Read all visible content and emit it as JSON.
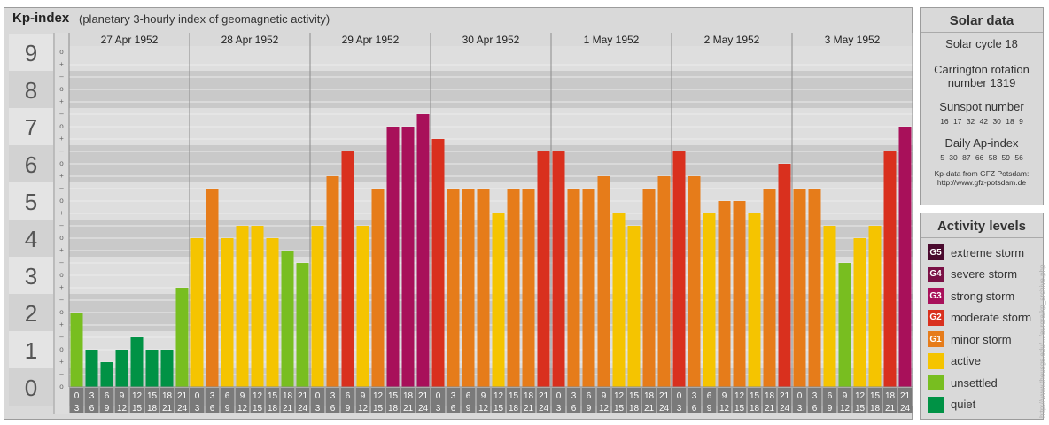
{
  "header": {
    "title": "Kp-index",
    "subtitle": "(planetary 3-hourly index of geomagnetic activity)"
  },
  "chart_data": {
    "type": "bar",
    "title": "Kp-index",
    "subtitle": "(planetary 3-hourly index of geomagnetic activity)",
    "ylim": [
      0,
      9
    ],
    "y_ticks": [
      "0",
      "1",
      "2",
      "3",
      "4",
      "5",
      "6",
      "7",
      "8",
      "9"
    ],
    "minor_marks": [
      "+",
      "–",
      "o"
    ],
    "days": [
      "27 Apr 1952",
      "28 Apr 1952",
      "29 Apr 1952",
      "30 Apr 1952",
      "1 May 1952",
      "2 May 1952",
      "3 May 1952"
    ],
    "interval_top": [
      "0",
      "3",
      "6",
      "9",
      "12",
      "15",
      "18",
      "21"
    ],
    "interval_bottom": [
      "3",
      "6",
      "9",
      "12",
      "15",
      "18",
      "21",
      "24"
    ],
    "values": [
      [
        2.0,
        1.0,
        0.667,
        1.0,
        1.333,
        1.0,
        1.0,
        2.667
      ],
      [
        4.0,
        5.333,
        4.0,
        4.333,
        4.333,
        4.0,
        3.667,
        3.333
      ],
      [
        4.333,
        5.667,
        6.333,
        4.333,
        5.333,
        7.0,
        7.0,
        7.333
      ],
      [
        6.667,
        5.333,
        5.333,
        5.333,
        4.667,
        5.333,
        5.333,
        6.333
      ],
      [
        6.333,
        5.333,
        5.333,
        5.667,
        4.667,
        4.333,
        5.333,
        5.667
      ],
      [
        6.333,
        5.667,
        4.667,
        5.0,
        5.0,
        4.667,
        5.333,
        6.0
      ],
      [
        5.333,
        5.333,
        4.333,
        3.333,
        4.0,
        4.333,
        6.333,
        7.0
      ]
    ],
    "legend_placement": "right",
    "grid": true
  },
  "solar": {
    "title": "Solar data",
    "cycle": "Solar cycle 18",
    "carrington_1": "Carrington rotation",
    "carrington_2": "number 1319",
    "sunspot_title": "Sunspot number",
    "sunspot_values": "16 17 32 42 30 18 9",
    "ap_title": "Daily Ap-index",
    "ap_values": "5 30 87 66 58 59 56",
    "credit_1": "Kp-data from GFZ Potsdam:",
    "credit_2": "http://www.gfz-potsdam.de"
  },
  "levels": {
    "title": "Activity levels",
    "items": [
      {
        "badge": "G5",
        "label": "extreme storm",
        "color": "#4a0a2e"
      },
      {
        "badge": "G4",
        "label": "severe storm",
        "color": "#7a1045"
      },
      {
        "badge": "G3",
        "label": "strong storm",
        "color": "#a8105a"
      },
      {
        "badge": "G2",
        "label": "moderate storm",
        "color": "#d9301e"
      },
      {
        "badge": "G1",
        "label": "minor storm",
        "color": "#e67c1a"
      },
      {
        "badge": "",
        "label": "active",
        "color": "#f5c400"
      },
      {
        "badge": "",
        "label": "unsettled",
        "color": "#78be20"
      },
      {
        "badge": "",
        "label": "quiet",
        "color": "#009245"
      }
    ]
  },
  "side_credit": "http://www.theusgs.edu/.../aurora/kp_archive.php"
}
